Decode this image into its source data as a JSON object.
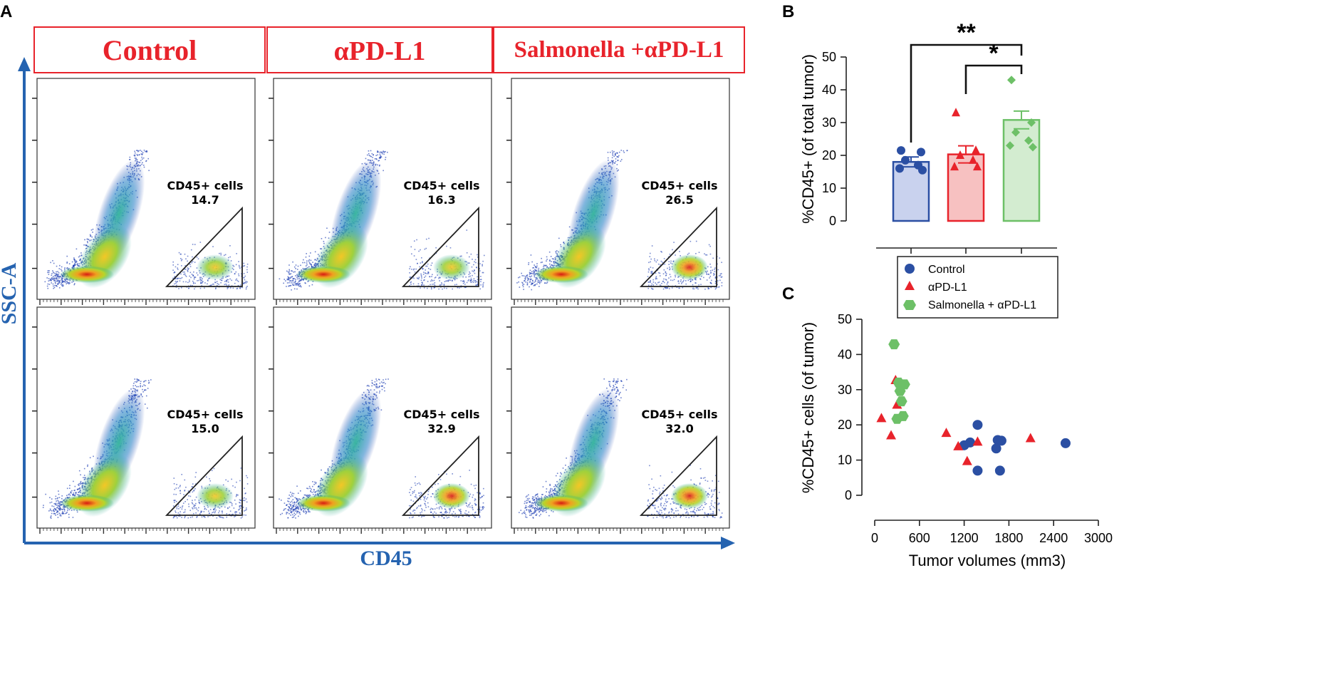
{
  "colors": {
    "control": "#2b4fa3",
    "apdl1": "#e8232b",
    "salmonella": "#6dc067",
    "axis_blue": "#2563b0",
    "header_red": "#e8232b",
    "gate": "#222222"
  },
  "panel_a": {
    "letter": "A",
    "y_axis_label": "SSC-A",
    "x_axis_label": "CD45",
    "column_headers": [
      "Control",
      "αPD-L1",
      "Salmonella +αPD-L1"
    ],
    "gate_label": "CD45+ cells",
    "gate_values": [
      [
        "14.7",
        "16.3",
        "26.5"
      ],
      [
        "15.0",
        "32.9",
        "32.0"
      ]
    ]
  },
  "chart_data": [
    {
      "panel": "B",
      "type": "bar",
      "letter": "B",
      "ylabel": "%CD45+ (of total tumor)",
      "ylim": [
        0,
        50
      ],
      "yticks": [
        "0",
        "10",
        "20",
        "30",
        "40",
        "50"
      ],
      "categories": [
        "Control",
        "αPD-L1",
        "Salmonella + αPD-L1"
      ],
      "means": [
        18,
        20.3,
        30.8
      ],
      "sem": [
        1.5,
        2.6,
        2.7
      ],
      "points": [
        [
          21.5,
          21,
          18.5,
          17,
          16,
          15.5
        ],
        [
          33,
          21.5,
          20,
          18.5,
          16.5,
          16.5
        ],
        [
          43,
          30,
          27,
          24.5,
          23,
          22.5
        ]
      ],
      "significance": [
        {
          "from": 0,
          "to": 2,
          "label": "**"
        },
        {
          "from": 1,
          "to": 2,
          "label": "*"
        }
      ]
    },
    {
      "panel": "C",
      "type": "scatter",
      "letter": "C",
      "ylabel": "%CD45+ cells (of tumor)",
      "xlabel": "Tumor volumes (mm3)",
      "xlim": [
        0,
        3000
      ],
      "ylim": [
        0,
        50
      ],
      "xticks": [
        "0",
        "600",
        "1200",
        "1800",
        "2400",
        "3000"
      ],
      "yticks": [
        "0",
        "10",
        "20",
        "30",
        "40",
        "50"
      ],
      "legend": [
        "Control",
        "αPD-L1",
        "Salmonella + αPD-L1"
      ],
      "series": [
        {
          "name": "Control",
          "x": [
            1380,
            1200,
            1280,
            1380,
            1630,
            1650,
            1680,
            1700,
            2560
          ],
          "y": [
            20,
            14.2,
            15,
            7,
            13.3,
            15.7,
            7,
            15.5,
            14.8
          ]
        },
        {
          "name": "αPD-L1",
          "x": [
            90,
            220,
            280,
            300,
            960,
            1120,
            1240,
            1380,
            2090
          ],
          "y": [
            22,
            17.1,
            32.8,
            25.8,
            17.8,
            14,
            9.8,
            15.3,
            16.3
          ]
        },
        {
          "name": "Salmonella + αPD-L1",
          "x": [
            260,
            320,
            340,
            360,
            300,
            380,
            400
          ],
          "y": [
            42.9,
            32,
            29.6,
            26.7,
            21.7,
            22.5,
            31.5
          ]
        }
      ]
    }
  ]
}
